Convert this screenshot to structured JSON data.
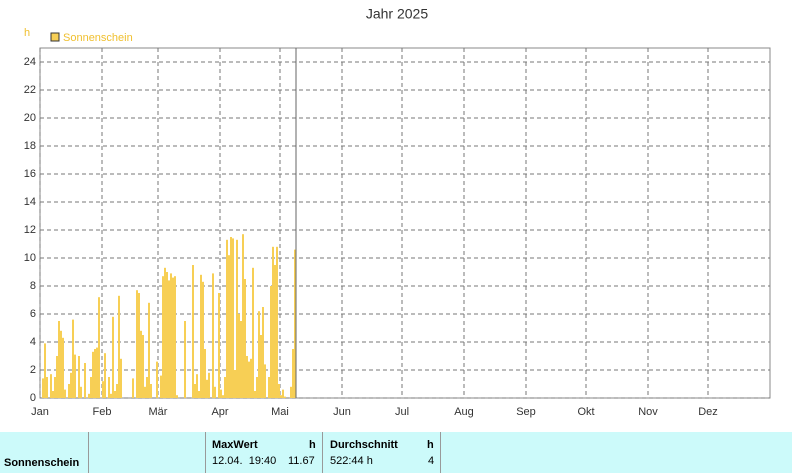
{
  "chart_data": {
    "type": "bar",
    "title": "Jahr 2025",
    "y_label": "h",
    "series": [
      {
        "name": "Sonnenschein",
        "color": "#f7cf55",
        "x": [
          0,
          1,
          2,
          3,
          4,
          5,
          6,
          7,
          8,
          9,
          10,
          11,
          12,
          13,
          14,
          15,
          16,
          17,
          18,
          19,
          20,
          21,
          22,
          23,
          24,
          25,
          26,
          27,
          28,
          29,
          30,
          31,
          32,
          33,
          34,
          35,
          36,
          37,
          38,
          39,
          40,
          41,
          42,
          43,
          44,
          45,
          46,
          47,
          48,
          49,
          50,
          51,
          52,
          53,
          54,
          55,
          56,
          57,
          58,
          59,
          60,
          61,
          62,
          63,
          64,
          65,
          66,
          67,
          68,
          69,
          70,
          71,
          72,
          73,
          74,
          75,
          76,
          77,
          78,
          79,
          80,
          81,
          82,
          83,
          84,
          85,
          86,
          87,
          88,
          89,
          90,
          91,
          92,
          93,
          94,
          95,
          96,
          97,
          98,
          99,
          100,
          101,
          102,
          103,
          104,
          105,
          106,
          107,
          108,
          109,
          110,
          111,
          112,
          113,
          114,
          115,
          116,
          117,
          118,
          119,
          120,
          121,
          122,
          123,
          124,
          125,
          126,
          127
        ],
        "values": [
          0,
          1.4,
          3.9,
          1.5,
          0,
          1.7,
          0.5,
          1.5,
          3,
          5.5,
          4.8,
          4.3,
          0.6,
          0,
          1,
          1.8,
          5.6,
          3.1,
          0,
          3,
          0.8,
          0,
          2.5,
          0,
          0.3,
          1.5,
          3.3,
          3.5,
          3.6,
          7.2,
          0,
          1.2,
          3.2,
          0,
          1.5,
          0.3,
          5.8,
          0.5,
          1,
          7.3,
          2.8,
          0,
          0,
          0,
          0,
          0,
          1.4,
          0,
          7.7,
          7.5,
          4.8,
          4.5,
          0.8,
          1.5,
          6.8,
          1,
          0,
          0,
          2.6,
          0,
          1.6,
          8.7,
          9.3,
          9,
          8.4,
          8.9,
          8.6,
          8.7,
          0.2,
          0,
          0,
          0,
          5.5,
          0,
          0,
          0,
          9.5,
          1,
          1.7,
          0.5,
          8.8,
          8.3,
          3.5,
          1.3,
          1.8,
          0,
          8.9,
          0.8,
          0,
          7.5,
          0.6,
          0.2,
          1.5,
          11.3,
          10.2,
          11.5,
          11.4,
          2,
          11.3,
          6,
          5.5,
          11.7,
          8.5,
          3,
          2.6,
          2.8,
          9.3,
          0.5,
          1.5,
          6.2,
          4.5,
          6.5,
          2.4,
          0,
          1.5,
          8,
          10.8,
          9.5,
          10.8,
          1,
          0.2,
          0.6,
          0.1,
          0,
          0,
          0.8,
          3.5,
          10.6
        ]
      }
    ],
    "today_line": 128,
    "xlim": [
      0,
      365
    ],
    "xticks": [
      {
        "value": 0,
        "label": "Jan"
      },
      {
        "value": 31,
        "label": "Feb"
      },
      {
        "value": 59,
        "label": "Mär"
      },
      {
        "value": 90,
        "label": "Apr"
      },
      {
        "value": 120,
        "label": "Mai"
      },
      {
        "value": 151,
        "label": "Jun"
      },
      {
        "value": 181,
        "label": "Jul"
      },
      {
        "value": 212,
        "label": "Aug"
      },
      {
        "value": 243,
        "label": "Sep"
      },
      {
        "value": 273,
        "label": "Okt"
      },
      {
        "value": 304,
        "label": "Nov"
      },
      {
        "value": 334,
        "label": "Dez"
      }
    ],
    "ylim": [
      0,
      25
    ],
    "yticks": [
      0,
      2,
      4,
      6,
      8,
      10,
      12,
      14,
      16,
      18,
      20,
      22,
      24
    ],
    "grid": true
  },
  "table": {
    "row_label": "Sonnenschein",
    "max": {
      "header": "MaxWert",
      "unit": "h",
      "date": "12.04.  19:40",
      "value": "11.67"
    },
    "avg": {
      "header": "Durchschnitt",
      "unit": "h",
      "value": "522:44 h",
      "count": "4"
    }
  }
}
